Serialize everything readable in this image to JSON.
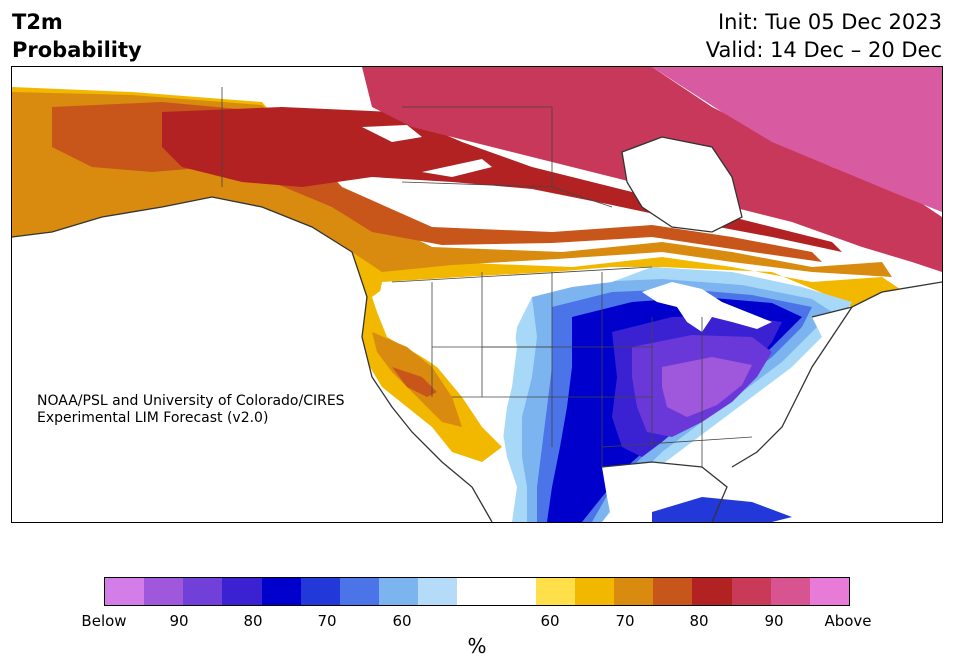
{
  "header": {
    "title_line1": "T2m",
    "title_line2": "Probability",
    "init_label": "Init: Tue 05 Dec 2023",
    "valid_label": "Valid: 14 Dec – 20 Dec"
  },
  "map": {
    "credit_line1": "NOAA/PSL and University of Colorado/CIRES",
    "credit_line2": "Experimental LIM Forecast (v2.0)",
    "colors": {
      "below_strong": "#0000cc",
      "below_mid": "#3a2ad8",
      "below_deep_purple": "#6a38d8",
      "below_light": "#a8d8f8",
      "above_yellow": "#f2b800",
      "above_orange": "#d98b0f",
      "above_burnt": "#c8551a",
      "above_red": "#b22222",
      "above_rose": "#c8385a",
      "above_pink": "#d85aa0",
      "coast": "#333333"
    }
  },
  "colorbar": {
    "colors": [
      "#d37ee8",
      "#9f58dc",
      "#7040d8",
      "#3a22d2",
      "#0000cc",
      "#2238d8",
      "#4a74e8",
      "#7cb4f0",
      "#b4dcf8",
      "#ffffff",
      "#ffffff",
      "#ffe04a",
      "#f2b800",
      "#d98b0f",
      "#c8551a",
      "#b22222",
      "#c83a58",
      "#d85490",
      "#e87ad8"
    ],
    "tick_labels": [
      "Below",
      "90",
      "80",
      "70",
      "60",
      "60",
      "70",
      "80",
      "90",
      "Above"
    ],
    "unit_label": "%"
  }
}
